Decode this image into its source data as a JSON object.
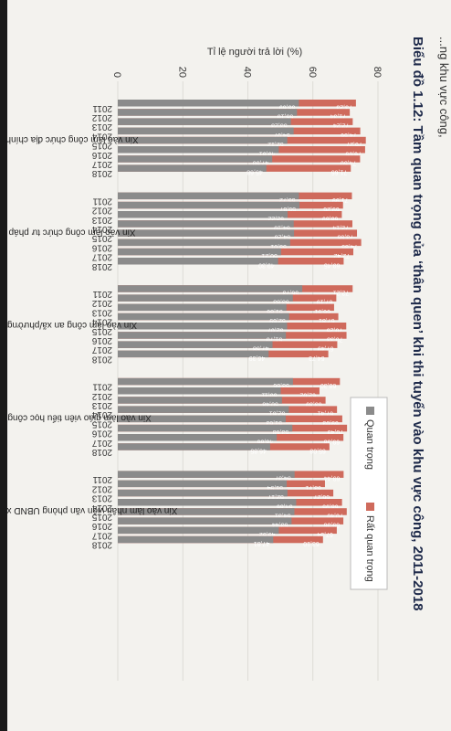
{
  "page": {
    "header_snippet": "...ng khu vực công,",
    "title": "Biểu đồ 1.12: Tầm quan trọng của ‘thân quen’ khi thi tuyển vào khu vực công, 2011-2018"
  },
  "chart_data": {
    "type": "bar",
    "stacked": true,
    "orientation": "horizontal",
    "ylabel": "Tỉ lệ người trả lời (%)",
    "ylim": [
      0,
      80
    ],
    "ticks": [
      0,
      20,
      40,
      60,
      80
    ],
    "grid": true,
    "legend_position": "top-right",
    "legend": [
      "Quan trọng",
      "Rất quan trọng"
    ],
    "colors": {
      "quan_trong": "#8b8b8b",
      "rat_quan_trong": "#cf6a5c"
    },
    "groups": [
      {
        "label": "Xin vào làm công chức địa chính",
        "years": [
          "2011",
          "2012",
          "2013",
          "2014",
          "2015",
          "2016",
          "2017",
          "2018"
        ],
        "quan_trong": [
          55.69,
          55.1,
          53.23,
          54.07,
          52.12,
          49.51,
          47.5,
          45.68
        ],
        "rat_quan_trong": [
          73.23,
          71.34,
          72.24,
          74.56,
          76.27,
          76.05,
          74.5,
          71.65
        ]
      },
      {
        "label": "Xin vào làm công chức tư pháp",
        "years": [
          "2011",
          "2012",
          "2013",
          "2014",
          "2015",
          "2016",
          "2017",
          "2018"
        ],
        "quan_trong": [
          55.72,
          55.87,
          52.22,
          54.1,
          54.2,
          53.01,
          50.21,
          49.3
        ],
        "rat_quan_trong": [
          71.99,
          69.26,
          68.89,
          72.14,
          73.55,
          74.85,
          72.42,
          69.45
        ]
      },
      {
        "label": "Xin vào làm công an xã/phường",
        "years": [
          "2011",
          "2012",
          "2013",
          "2014",
          "2015",
          "2016",
          "2017",
          "2018"
        ],
        "quan_trong": [
          56.73,
          53.83,
          51.86,
          52.69,
          52.07,
          51.7,
          47.58,
          46.39
        ],
        "rat_quan_trong": [
          72.21,
          67.19,
          66.51,
          67.81,
          70.25,
          70.33,
          67.49,
          64.73
        ]
      },
      {
        "label": "Xin vào làm giáo viên tiểu học công lập",
        "years": [
          "2011",
          "2012",
          "2013",
          "2014",
          "2015",
          "2016",
          "2017",
          "2018"
        ],
        "quan_trong": [
          53.86,
          50.11,
          50.48,
          52.61,
          51.63,
          53.68,
          48.86,
          46.85
        ],
        "rat_quan_trong": [
          68.3,
          62.02,
          63.89,
          67.41,
          69.03,
          70.49,
          69.38,
          65.08
        ]
      },
      {
        "label": "Xin vào làm nhân viên văn phòng UBND xã/phường",
        "years": [
          "2011",
          "2012",
          "2013",
          "2014",
          "2015",
          "2016",
          "2017",
          "2018"
        ],
        "quan_trong": [
          54.37,
          51.94,
          52.17,
          54.86,
          54.31,
          53.44,
          49.52,
          47.81
        ],
        "rat_quan_trong": [
          69.44,
          63.71,
          66.27,
          68.95,
          70.4,
          69.36,
          67.34,
          63.1
        ]
      }
    ]
  }
}
